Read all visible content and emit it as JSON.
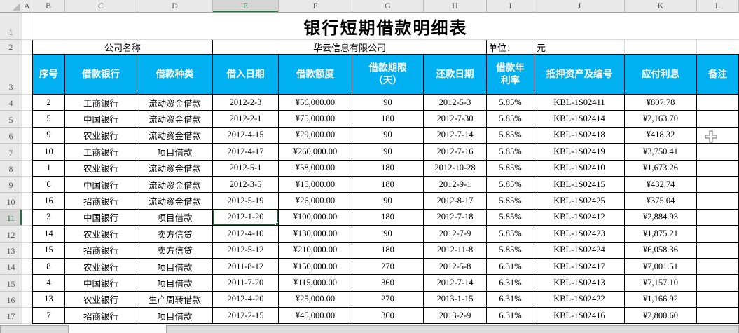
{
  "sheet": {
    "selected_cell": "E11",
    "selected_column": "E",
    "selected_row": "11",
    "column_letters": [
      "A",
      "B",
      "C",
      "D",
      "E",
      "F",
      "G",
      "H",
      "I",
      "J",
      "K",
      "L"
    ],
    "row_numbers": [
      "1",
      "2",
      "3",
      "4",
      "5",
      "6",
      "7",
      "8",
      "9",
      "10",
      "11",
      "12",
      "13",
      "14",
      "15",
      "16",
      "17"
    ],
    "title": "银行短期借款明细表",
    "info_row": {
      "company_label": "公司名称",
      "company_name": "华云信息有限公司",
      "unit_label": "单位：",
      "unit_value": "元"
    },
    "table": {
      "headers": [
        "序号",
        "借款银行",
        "借款种类",
        "借入日期",
        "借款额度",
        "借款期限\n（天）",
        "还款日期",
        "借款年\n利率",
        "抵押资产及编号",
        "应付利息",
        "备注"
      ],
      "rows": [
        [
          "2",
          "工商银行",
          "流动资金借款",
          "2012-2-3",
          "¥56,000.00",
          "90",
          "2012-5-3",
          "5.85%",
          "KBL-1S02411",
          "¥807.78",
          ""
        ],
        [
          "5",
          "中国银行",
          "流动资金借款",
          "2012-2-1",
          "¥75,000.00",
          "180",
          "2012-7-30",
          "5.85%",
          "KBL-1S02414",
          "¥2,163.70",
          ""
        ],
        [
          "9",
          "农业银行",
          "流动资金借款",
          "2012-4-15",
          "¥29,000.00",
          "90",
          "2012-7-14",
          "5.85%",
          "KBL-1S02418",
          "¥418.32",
          ""
        ],
        [
          "10",
          "工商银行",
          "项目借款",
          "2012-4-17",
          "¥260,000.00",
          "90",
          "2012-7-16",
          "5.85%",
          "KBL-1S02419",
          "¥3,750.41",
          ""
        ],
        [
          "1",
          "农业银行",
          "流动资金借款",
          "2012-5-1",
          "¥58,000.00",
          "180",
          "2012-10-28",
          "5.85%",
          "KBL-1S02410",
          "¥1,673.26",
          ""
        ],
        [
          "6",
          "中国银行",
          "流动资金借款",
          "2012-3-5",
          "¥15,000.00",
          "180",
          "2012-9-1",
          "5.85%",
          "KBL-1S02415",
          "¥432.74",
          ""
        ],
        [
          "16",
          "招商银行",
          "流动资金借款",
          "2012-5-19",
          "¥26,000.00",
          "90",
          "2012-8-17",
          "5.85%",
          "KBL-1S02425",
          "¥375.04",
          ""
        ],
        [
          "3",
          "中国银行",
          "项目借款",
          "2012-1-20",
          "¥100,000.00",
          "180",
          "2012-7-18",
          "5.85%",
          "KBL-1S02412",
          "¥2,884.93",
          ""
        ],
        [
          "14",
          "农业银行",
          "卖方信贷",
          "2012-4-10",
          "¥130,000.00",
          "90",
          "2012-7-9",
          "5.85%",
          "KBL-1S02423",
          "¥1,875.21",
          ""
        ],
        [
          "15",
          "招商银行",
          "卖方信贷",
          "2012-5-12",
          "¥210,000.00",
          "180",
          "2012-11-8",
          "5.85%",
          "KBL-1S02424",
          "¥6,058.36",
          ""
        ],
        [
          "8",
          "农业银行",
          "项目借款",
          "2011-8-12",
          "¥150,000.00",
          "270",
          "2012-5-8",
          "6.31%",
          "KBL-1S02417",
          "¥7,001.51",
          ""
        ],
        [
          "4",
          "中国银行",
          "项目借款",
          "2011-7-20",
          "¥115,000.00",
          "360",
          "2012-7-14",
          "6.31%",
          "KBL-1S02413",
          "¥7,157.10",
          ""
        ],
        [
          "13",
          "农业银行",
          "生产周转借款",
          "2012-4-20",
          "¥25,000.00",
          "270",
          "2013-1-15",
          "6.31%",
          "KBL-1S02422",
          "¥1,166.92",
          ""
        ],
        [
          "7",
          "招商银行",
          "项目借款",
          "2012-2-15",
          "¥45,000.00",
          "360",
          "2013-2-9",
          "6.31%",
          "KBL-1S02416",
          "¥2,800.60",
          ""
        ]
      ],
      "first_data_sheet_row": 4
    },
    "colors": {
      "header_bg": "#00b0f0",
      "selection_green": "#217346"
    }
  }
}
